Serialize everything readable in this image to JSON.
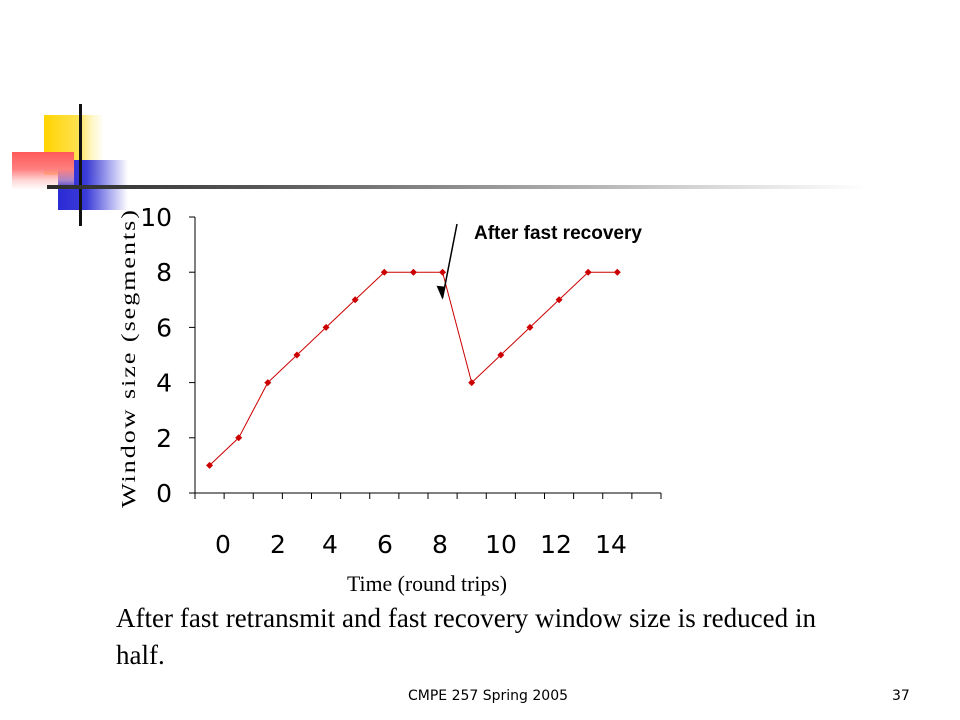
{
  "chart_data": {
    "type": "line",
    "x": [
      0,
      1,
      2,
      3,
      4,
      5,
      6,
      7,
      8,
      9,
      10,
      11,
      12,
      13,
      14
    ],
    "series": [
      {
        "values": [
          1,
          2,
          4,
          5,
          6,
          7,
          8,
          8,
          8,
          4,
          5,
          6,
          7,
          8,
          8
        ],
        "color": "#cc0000"
      }
    ],
    "xlabel": "Time (round trips)",
    "ylabel": "Window size (segments)",
    "xlim": [
      0,
      16
    ],
    "ylim": [
      0,
      10
    ],
    "x_ticks": [
      "0",
      "2",
      "4",
      "6",
      "8",
      "10",
      "12",
      "14"
    ],
    "y_ticks": [
      "0",
      "2",
      "4",
      "6",
      "8",
      "10"
    ],
    "annotation": {
      "text": "After fast recovery",
      "points_to_x": 8,
      "points_to_y": 7
    },
    "grid": false
  },
  "body_text": "After fast retransmit and fast recovery window size is reduced in half.",
  "footer": {
    "left": "CMPE 257  Spring 2005",
    "page_number": "37"
  }
}
